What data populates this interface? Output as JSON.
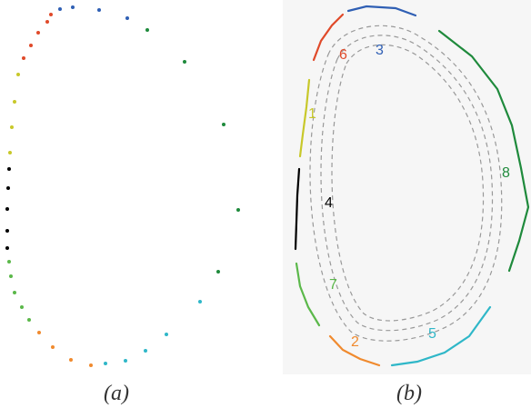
{
  "captions": {
    "a": "(a)",
    "b": "(b)"
  },
  "segments": [
    {
      "id": "1",
      "label": "1",
      "color": "#c8c82a"
    },
    {
      "id": "2",
      "label": "2",
      "color": "#f08a2e"
    },
    {
      "id": "3",
      "label": "3",
      "color": "#2f5fb4"
    },
    {
      "id": "4",
      "label": "4",
      "color": "#000000"
    },
    {
      "id": "5",
      "label": "5",
      "color": "#2fb7c8"
    },
    {
      "id": "6",
      "label": "6",
      "color": "#e04a2a"
    },
    {
      "id": "7",
      "label": "7",
      "color": "#5bb84a"
    },
    {
      "id": "8",
      "label": "8",
      "color": "#1f8a3c"
    }
  ],
  "colors": {
    "dashed_contour": "#999999",
    "panel_b_background": "#f6f6f6"
  }
}
